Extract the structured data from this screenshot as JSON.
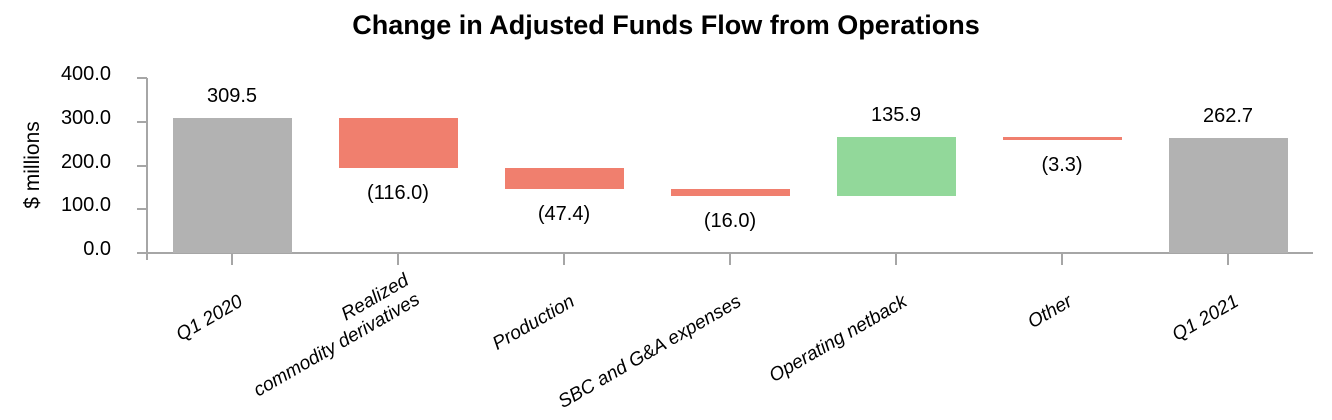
{
  "title": "Change in Adjusted Funds Flow from Operations",
  "y_axis": {
    "label": "$ millions",
    "tick_labels": [
      "400.0",
      "300.0",
      "200.0",
      "100.0",
      "0.0"
    ],
    "tick_values": [
      400,
      300,
      200,
      100,
      0
    ],
    "min": 0,
    "max": 400
  },
  "chart_data": {
    "type": "bar",
    "subtype": "waterfall",
    "title": "Change in Adjusted Funds Flow from Operations",
    "xlabel": "",
    "ylabel": "$ millions",
    "ylim": [
      0,
      400
    ],
    "grid": false,
    "legend": false,
    "categories": [
      "Q1 2020",
      "Realized commodity derivatives",
      "Production",
      "SBC and G&A expenses",
      "Operating netback",
      "Other",
      "Q1 2021"
    ],
    "values": [
      309.5,
      -116.0,
      -47.4,
      -16.0,
      135.9,
      -3.3,
      262.7
    ],
    "bars": [
      {
        "category": "Q1 2020",
        "label_text": "Q1 2020",
        "value": 309.5,
        "display": "309.5",
        "kind": "total",
        "start": 0,
        "end": 309.5,
        "value_label_position": "above"
      },
      {
        "category": "Realized commodity derivatives",
        "label_text": "Realized\ncommodity derivatives",
        "value": -116.0,
        "display": "(116.0)",
        "kind": "decrease",
        "start": 309.5,
        "end": 193.5,
        "value_label_position": "below"
      },
      {
        "category": "Production",
        "label_text": "Production",
        "value": -47.4,
        "display": "(47.4)",
        "kind": "decrease",
        "start": 193.5,
        "end": 146.1,
        "value_label_position": "below"
      },
      {
        "category": "SBC and G&A expenses",
        "label_text": "SBC and G&A expenses",
        "value": -16.0,
        "display": "(16.0)",
        "kind": "decrease",
        "start": 146.1,
        "end": 130.1,
        "value_label_position": "below"
      },
      {
        "category": "Operating netback",
        "label_text": "Operating netback",
        "value": 135.9,
        "display": "135.9",
        "kind": "increase",
        "start": 130.1,
        "end": 266.0,
        "value_label_position": "above"
      },
      {
        "category": "Other",
        "label_text": "Other",
        "value": -3.3,
        "display": "(3.3)",
        "kind": "decrease",
        "start": 266.0,
        "end": 262.7,
        "value_label_position": "below"
      },
      {
        "category": "Q1 2021",
        "label_text": "Q1 2021",
        "value": 262.7,
        "display": "262.7",
        "kind": "total",
        "start": 0,
        "end": 262.7,
        "value_label_position": "above"
      }
    ],
    "colors": {
      "total_bar": "#B2B2B2",
      "decrease_bar": "#F07F6E",
      "increase_bar": "#92D89A",
      "axis": "#A6A6A6",
      "text": "#000000"
    }
  }
}
